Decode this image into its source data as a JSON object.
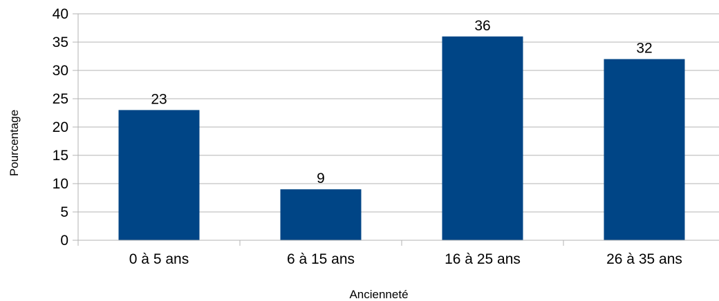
{
  "chart_data": {
    "type": "bar",
    "categories": [
      "0 à 5 ans",
      "6 à 15 ans",
      "16 à 25 ans",
      "26 à 35 ans"
    ],
    "values": [
      23,
      9,
      36,
      32
    ],
    "data_labels": [
      "23",
      "9",
      "36",
      "32"
    ],
    "title": "",
    "xlabel": "Ancienneté",
    "ylabel": "Pourcentage",
    "ylim": [
      0,
      40
    ],
    "yticks": [
      0,
      5,
      10,
      15,
      20,
      25,
      30,
      35,
      40
    ],
    "grid": true,
    "legend": "none",
    "bar_color": "#004586",
    "grid_color": "#b3b3b3"
  }
}
